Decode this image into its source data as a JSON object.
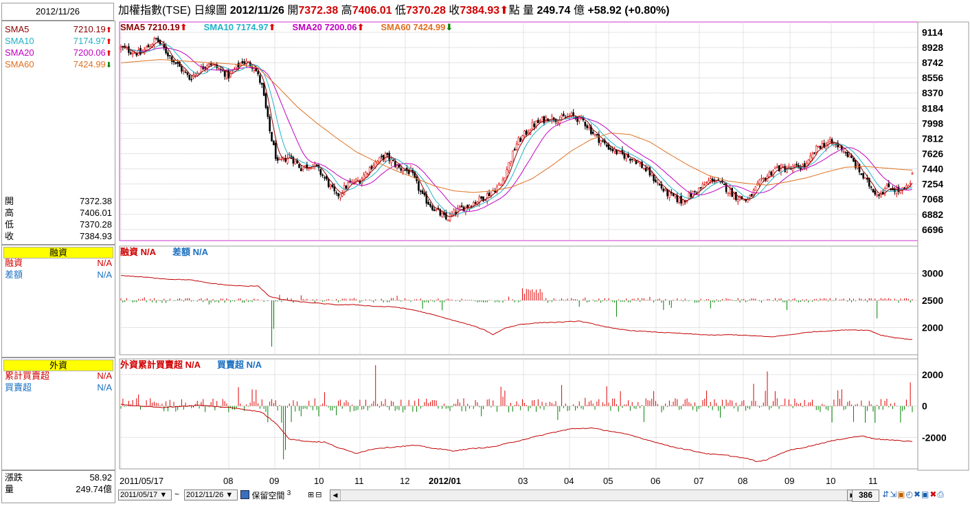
{
  "date_box": "2012/11/26",
  "title": {
    "name": "加權指數(TSE)",
    "type": "日線圖",
    "date": "2012/11/26",
    "open_label": "開",
    "open": "7372.38",
    "high_label": "高",
    "high": "7406.01",
    "low_label": "低",
    "low": "7370.28",
    "close_label": "收",
    "close": "7384.93",
    "point_label": "點",
    "volume_label": "量",
    "volume": "249.74",
    "volume_unit": "億",
    "change": "+58.92",
    "change_pct": "(+0.80%)"
  },
  "sidebar": {
    "sma": [
      {
        "label": "SMA5",
        "value": "7210.19",
        "dir": "up",
        "color": "#8b0000"
      },
      {
        "label": "SMA10",
        "value": "7174.97",
        "dir": "up",
        "color": "#20b2c8"
      },
      {
        "label": "SMA20",
        "value": "7200.06",
        "dir": "up",
        "color": "#c000c0"
      },
      {
        "label": "SMA60",
        "value": "7424.99",
        "dir": "down",
        "color": "#e07020"
      }
    ],
    "ohlc": [
      {
        "label": "開",
        "value": "7372.38"
      },
      {
        "label": "高",
        "value": "7406.01"
      },
      {
        "label": "低",
        "value": "7370.28"
      },
      {
        "label": "收",
        "value": "7384.93"
      }
    ],
    "margin_header": "融資",
    "margin_rows": [
      {
        "label": "融資",
        "value": "N/A",
        "color": "#d00000"
      },
      {
        "label": "差額",
        "value": "N/A",
        "color": "#1a6fc0"
      }
    ],
    "foreign_header": "外資",
    "foreign_rows": [
      {
        "label": "累計買賣超",
        "value": "N/A",
        "color": "#d00000"
      },
      {
        "label": "買賣超",
        "value": "N/A",
        "color": "#1a6fc0"
      }
    ],
    "bottom_rows": [
      {
        "label": "漲跌",
        "value": "58.92"
      },
      {
        "label": "量",
        "value": "249.74億"
      }
    ]
  },
  "legends": {
    "price": [
      {
        "label": "SMA5",
        "value": "7210.19",
        "dir": "up",
        "color": "#8b0000"
      },
      {
        "label": "SMA10",
        "value": "7174.97",
        "dir": "up",
        "color": "#20b2c8"
      },
      {
        "label": "SMA20",
        "value": "7200.06",
        "dir": "up",
        "color": "#c000c0"
      },
      {
        "label": "SMA60",
        "value": "7424.99",
        "dir": "down",
        "color": "#e07020"
      }
    ],
    "margin": [
      {
        "label": "融資",
        "value": "N/A",
        "color": "#d00000"
      },
      {
        "label": "差額",
        "value": "N/A",
        "color": "#1a6fc0"
      }
    ],
    "foreign": [
      {
        "label": "外資累計買賣超",
        "value": "N/A",
        "color": "#d00000"
      },
      {
        "label": "買賣超",
        "value": "N/A",
        "color": "#1a6fc0"
      }
    ]
  },
  "controls": {
    "start_date": "2011/05/17",
    "tilde": "~",
    "end_date": "2012/11/26",
    "reserve_label": "保留空間",
    "reserve_value": "3",
    "count": "386"
  },
  "colors": {
    "up": "#e00000",
    "down": "#008000",
    "grid": "#c8c8c8",
    "price_frame": "#cc33cc",
    "sma5": "#8b0000",
    "sma10": "#20b2c8",
    "sma20": "#c000c0",
    "sma60": "#e07020"
  },
  "chart_data": [
    {
      "type": "candlestick",
      "panel": "price",
      "x_tick_labels": [
        "2011/05/17",
        "08",
        "09",
        "10",
        "11",
        "12",
        "2012/01",
        "03",
        "04",
        "05",
        "06",
        "07",
        "08",
        "09",
        "10",
        "11"
      ],
      "y_ticks": [
        9114,
        8928,
        8742,
        8556,
        8370,
        8184,
        7998,
        7812,
        7626,
        7440,
        7254,
        7068,
        6882,
        6696
      ],
      "ylim": [
        6560,
        9240
      ],
      "anchors": [
        [
          0,
          8920
        ],
        [
          10,
          8850
        ],
        [
          18,
          9030
        ],
        [
          25,
          8820
        ],
        [
          35,
          8550
        ],
        [
          45,
          8750
        ],
        [
          55,
          8580
        ],
        [
          62,
          8760
        ],
        [
          68,
          8700
        ],
        [
          72,
          8450
        ],
        [
          76,
          7900
        ],
        [
          80,
          7500
        ],
        [
          86,
          7600
        ],
        [
          92,
          7450
        ],
        [
          98,
          7500
        ],
        [
          104,
          7330
        ],
        [
          110,
          7100
        ],
        [
          116,
          7250
        ],
        [
          122,
          7300
        ],
        [
          128,
          7480
        ],
        [
          135,
          7600
        ],
        [
          142,
          7450
        ],
        [
          148,
          7400
        ],
        [
          154,
          7100
        ],
        [
          160,
          6950
        ],
        [
          166,
          6820
        ],
        [
          172,
          6930
        ],
        [
          178,
          7000
        ],
        [
          186,
          7100
        ],
        [
          194,
          7250
        ],
        [
          202,
          7750
        ],
        [
          210,
          7970
        ],
        [
          218,
          8070
        ],
        [
          224,
          8050
        ],
        [
          230,
          8090
        ],
        [
          236,
          8030
        ],
        [
          242,
          7850
        ],
        [
          248,
          7720
        ],
        [
          254,
          7630
        ],
        [
          262,
          7560
        ],
        [
          270,
          7380
        ],
        [
          278,
          7150
        ],
        [
          286,
          7040
        ],
        [
          294,
          7170
        ],
        [
          302,
          7320
        ],
        [
          308,
          7220
        ],
        [
          314,
          7100
        ],
        [
          320,
          7050
        ],
        [
          326,
          7260
        ],
        [
          334,
          7450
        ],
        [
          342,
          7440
        ],
        [
          350,
          7480
        ],
        [
          356,
          7720
        ],
        [
          362,
          7760
        ],
        [
          368,
          7700
        ],
        [
          374,
          7520
        ],
        [
          380,
          7300
        ],
        [
          386,
          7130
        ],
        [
          392,
          7220
        ],
        [
          398,
          7160
        ],
        [
          404,
          7250
        ]
      ],
      "sma60_anchors": [
        [
          0,
          8740
        ],
        [
          20,
          8780
        ],
        [
          40,
          8750
        ],
        [
          60,
          8720
        ],
        [
          70,
          8680
        ],
        [
          80,
          8450
        ],
        [
          90,
          8200
        ],
        [
          100,
          8000
        ],
        [
          110,
          7820
        ],
        [
          120,
          7650
        ],
        [
          130,
          7530
        ],
        [
          140,
          7420
        ],
        [
          150,
          7330
        ],
        [
          160,
          7230
        ],
        [
          170,
          7170
        ],
        [
          180,
          7150
        ],
        [
          190,
          7170
        ],
        [
          200,
          7220
        ],
        [
          210,
          7320
        ],
        [
          220,
          7480
        ],
        [
          230,
          7660
        ],
        [
          240,
          7800
        ],
        [
          250,
          7880
        ],
        [
          260,
          7860
        ],
        [
          270,
          7770
        ],
        [
          280,
          7620
        ],
        [
          290,
          7480
        ],
        [
          300,
          7360
        ],
        [
          310,
          7290
        ],
        [
          320,
          7260
        ],
        [
          330,
          7240
        ],
        [
          340,
          7280
        ],
        [
          350,
          7330
        ],
        [
          360,
          7400
        ],
        [
          370,
          7460
        ],
        [
          380,
          7470
        ],
        [
          390,
          7450
        ],
        [
          400,
          7430
        ],
        [
          404,
          7425
        ]
      ],
      "series": [
        {
          "name": "SMA5",
          "last": 7210.19
        },
        {
          "name": "SMA10",
          "last": 7174.97
        },
        {
          "name": "SMA20",
          "last": 7200.06
        },
        {
          "name": "SMA60",
          "last": 7424.99
        }
      ]
    },
    {
      "type": "bar+line",
      "panel": "margin",
      "y_ticks": [
        3000,
        2500,
        2000
      ],
      "ylim": [
        1500,
        3500
      ],
      "baseline": 2500,
      "line_anchors": [
        [
          0,
          2960
        ],
        [
          15,
          2920
        ],
        [
          25,
          2890
        ],
        [
          35,
          2880
        ],
        [
          45,
          2820
        ],
        [
          55,
          2780
        ],
        [
          65,
          2760
        ],
        [
          70,
          2770
        ],
        [
          76,
          2570
        ],
        [
          82,
          2520
        ],
        [
          90,
          2480
        ],
        [
          100,
          2450
        ],
        [
          110,
          2420
        ],
        [
          120,
          2420
        ],
        [
          130,
          2390
        ],
        [
          140,
          2380
        ],
        [
          150,
          2320
        ],
        [
          160,
          2230
        ],
        [
          170,
          2130
        ],
        [
          180,
          2030
        ],
        [
          186,
          1950
        ],
        [
          190,
          1870
        ],
        [
          196,
          1990
        ],
        [
          204,
          2060
        ],
        [
          214,
          2090
        ],
        [
          224,
          2100
        ],
        [
          234,
          2120
        ],
        [
          242,
          2060
        ],
        [
          252,
          1980
        ],
        [
          262,
          1940
        ],
        [
          272,
          1920
        ],
        [
          282,
          1900
        ],
        [
          292,
          1880
        ],
        [
          302,
          1860
        ],
        [
          312,
          1870
        ],
        [
          322,
          1850
        ],
        [
          332,
          1830
        ],
        [
          342,
          1870
        ],
        [
          352,
          1920
        ],
        [
          362,
          1940
        ],
        [
          372,
          1960
        ],
        [
          382,
          1950
        ],
        [
          388,
          1860
        ],
        [
          396,
          1810
        ],
        [
          404,
          1780
        ]
      ]
    },
    {
      "type": "bar+line",
      "panel": "foreign",
      "y_ticks": [
        2000,
        0,
        -2000
      ],
      "ylim": [
        -4000,
        3000
      ],
      "baseline": 0,
      "line_anchors": [
        [
          0,
          100
        ],
        [
          20,
          -100
        ],
        [
          40,
          50
        ],
        [
          60,
          -150
        ],
        [
          72,
          -400
        ],
        [
          80,
          -1200
        ],
        [
          86,
          -2100
        ],
        [
          95,
          -2250
        ],
        [
          104,
          -2300
        ],
        [
          112,
          -2700
        ],
        [
          120,
          -3000
        ],
        [
          130,
          -2700
        ],
        [
          140,
          -2600
        ],
        [
          150,
          -2500
        ],
        [
          160,
          -2700
        ],
        [
          170,
          -2850
        ],
        [
          180,
          -2700
        ],
        [
          190,
          -2600
        ],
        [
          200,
          -2300
        ],
        [
          210,
          -2000
        ],
        [
          220,
          -1700
        ],
        [
          230,
          -1450
        ],
        [
          240,
          -1400
        ],
        [
          250,
          -1600
        ],
        [
          260,
          -1850
        ],
        [
          270,
          -2200
        ],
        [
          280,
          -2550
        ],
        [
          290,
          -2800
        ],
        [
          300,
          -3050
        ],
        [
          310,
          -3150
        ],
        [
          320,
          -3350
        ],
        [
          325,
          -3550
        ],
        [
          330,
          -3400
        ],
        [
          340,
          -2850
        ],
        [
          350,
          -2600
        ],
        [
          360,
          -2300
        ],
        [
          370,
          -2050
        ],
        [
          378,
          -1900
        ],
        [
          386,
          -2100
        ],
        [
          396,
          -2200
        ],
        [
          404,
          -2250
        ]
      ]
    }
  ]
}
